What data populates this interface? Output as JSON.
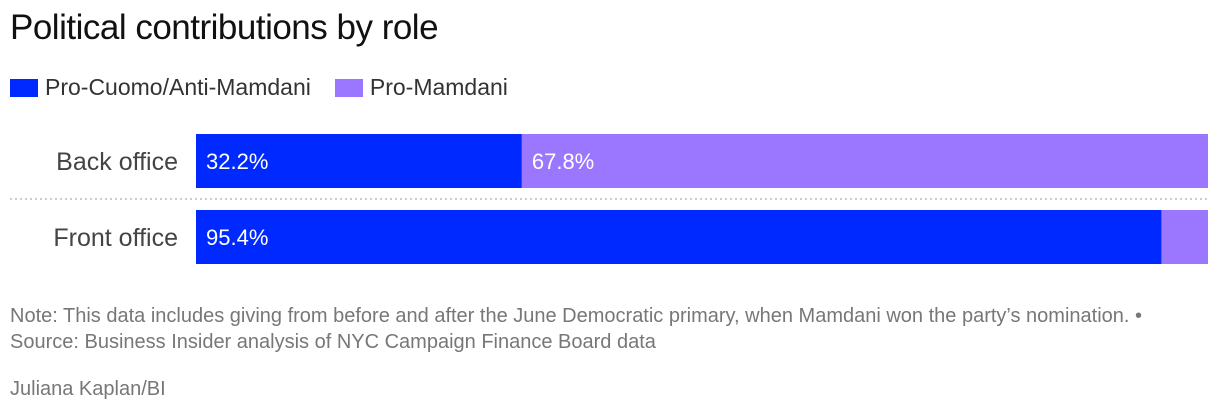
{
  "title": "Political contributions by role",
  "chart_data": {
    "type": "bar",
    "stacked": true,
    "orientation": "horizontal",
    "title": "Political contributions by role",
    "categories": [
      "Back office",
      "Front office"
    ],
    "series": [
      {
        "name": "Pro-Cuomo/Anti-Mamdani",
        "color": "#0029ff",
        "values": [
          32.2,
          95.4
        ],
        "labels": [
          "32.2%",
          "95.4%"
        ]
      },
      {
        "name": "Pro-Mamdani",
        "color": "#9b77ff",
        "values": [
          67.8,
          4.6
        ],
        "labels": [
          "67.8%",
          ""
        ]
      }
    ],
    "xlim": [
      0,
      100
    ],
    "legend": "top-left"
  },
  "note": "Note: This data includes giving from before and after the June Democratic primary, when Mamdani won the party’s nomination. • Source: Business Insider analysis of NYC Campaign Finance Board data",
  "credit": "Juliana Kaplan/BI"
}
